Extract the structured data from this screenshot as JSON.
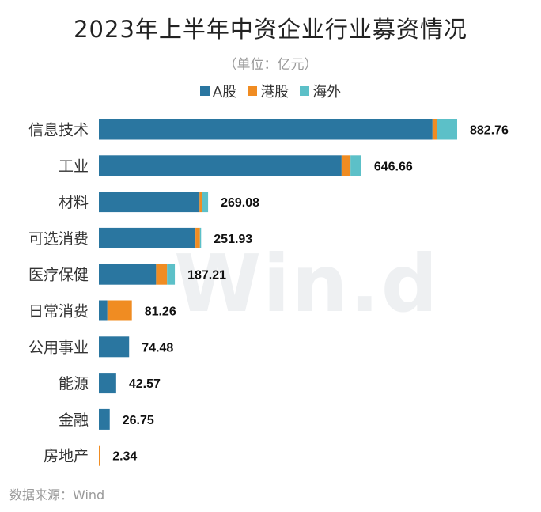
{
  "colors": {
    "a_share": "#2a76a0",
    "hk_share": "#f08c22",
    "overseas": "#5cc0c8"
  },
  "header": {
    "title": "2023年上半年中资企业行业募资情况",
    "unit": "（单位：亿元）"
  },
  "watermark": "Win.d",
  "footer": {
    "source": "数据来源：Wind"
  },
  "chart_data": {
    "type": "bar",
    "orientation": "horizontal",
    "stacked": true,
    "title": "2023年上半年中资企业行业募资情况",
    "unit": "（单位：亿元）",
    "legend_position": "top",
    "categories": [
      "信息技术",
      "工业",
      "材料",
      "可选消费",
      "医疗保健",
      "日常消费",
      "公用事业",
      "能源",
      "金融",
      "房地产"
    ],
    "series": [
      {
        "name": "A股",
        "color": "#2a76a0",
        "values": [
          822.0,
          598.0,
          248.0,
          238.0,
          141.0,
          21.0,
          74.48,
          42.57,
          26.75,
          0
        ]
      },
      {
        "name": "港股",
        "color": "#f08c22",
        "values": [
          12.0,
          22.0,
          6.0,
          11.0,
          27.0,
          60.26,
          0,
          0,
          0,
          2.34
        ]
      },
      {
        "name": "海外",
        "color": "#5cc0c8",
        "values": [
          48.76,
          26.66,
          15.08,
          2.93,
          19.21,
          0,
          0,
          0,
          0,
          0
        ]
      }
    ],
    "totals": [
      "882.76",
      "646.66",
      "269.08",
      "251.93",
      "187.21",
      "81.26",
      "74.48",
      "42.57",
      "26.75",
      "2.34"
    ],
    "xlim": [
      0,
      1000
    ],
    "grid": false
  }
}
